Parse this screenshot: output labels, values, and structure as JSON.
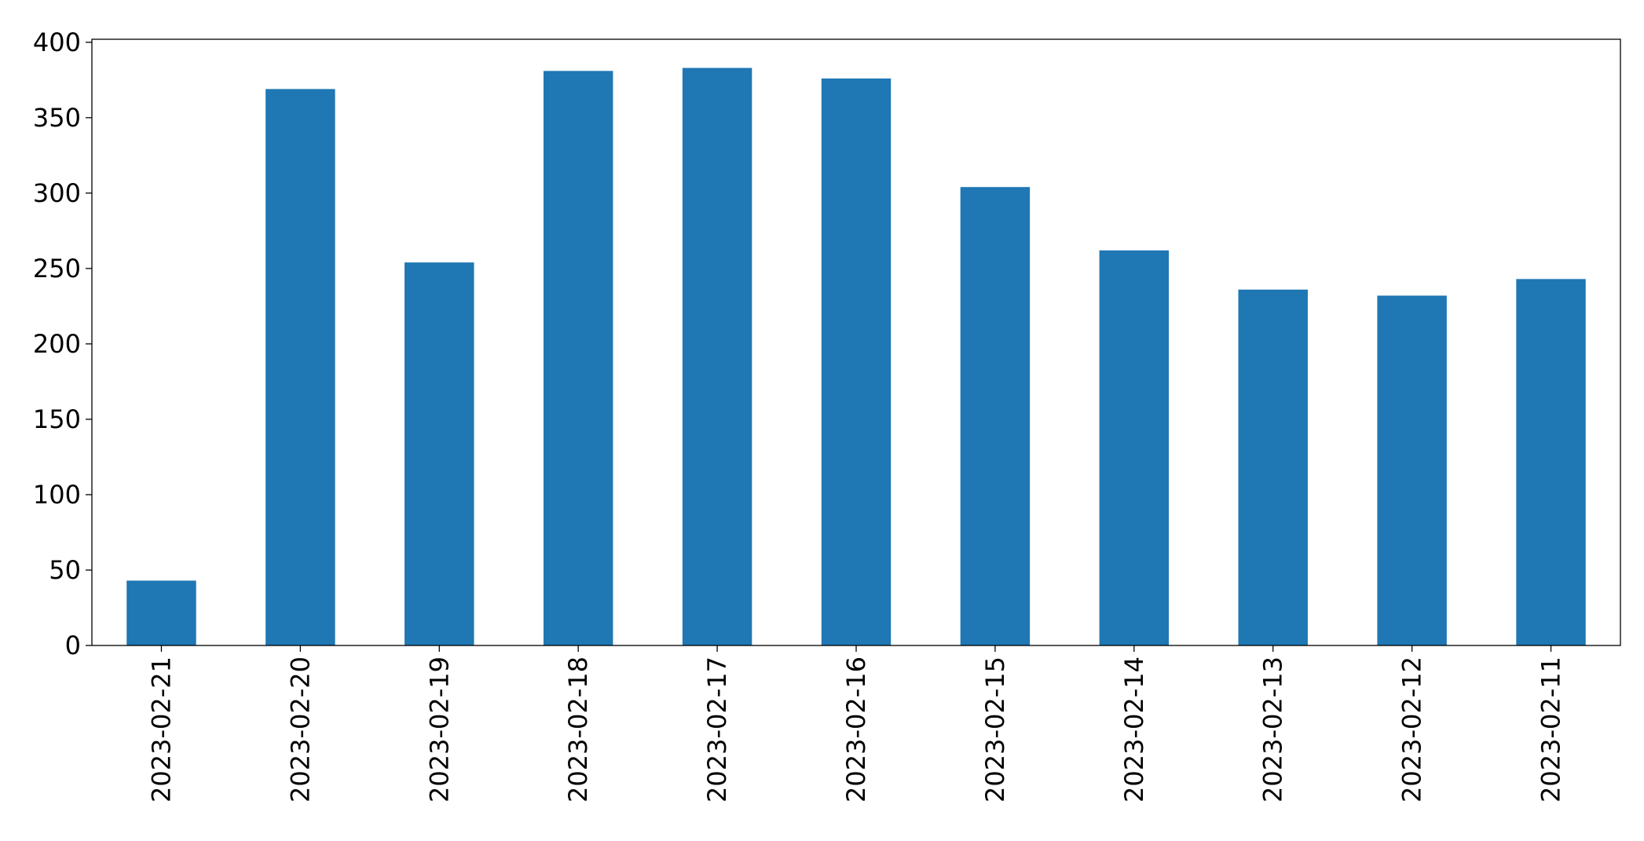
{
  "chart_data": {
    "type": "bar",
    "categories": [
      "2023-02-21",
      "2023-02-20",
      "2023-02-19",
      "2023-02-18",
      "2023-02-17",
      "2023-02-16",
      "2023-02-15",
      "2023-02-14",
      "2023-02-13",
      "2023-02-12",
      "2023-02-11"
    ],
    "values": [
      43,
      369,
      254,
      381,
      383,
      376,
      304,
      262,
      236,
      232,
      243
    ],
    "color": "#1f77b4",
    "ylim": [
      0,
      402
    ],
    "yticks": [
      0,
      50,
      100,
      150,
      200,
      250,
      300,
      350,
      400
    ],
    "grid": false
  }
}
